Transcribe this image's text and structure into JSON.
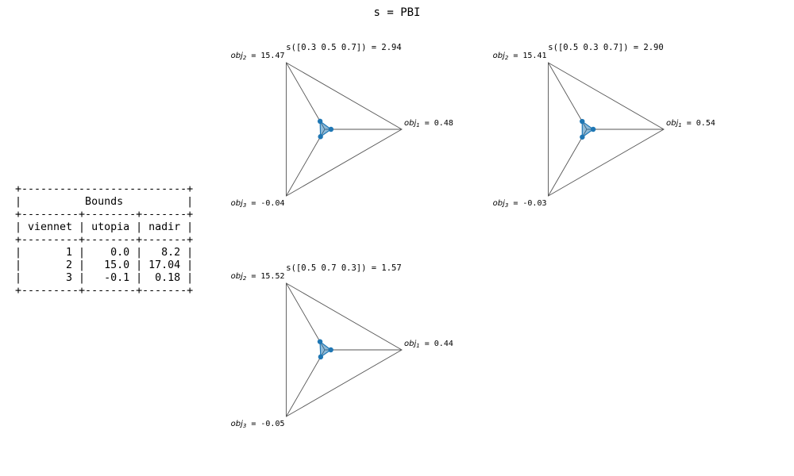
{
  "figure": {
    "title": "s = PBI"
  },
  "bounds_table": {
    "title": "Bounds",
    "headers": [
      "viennet",
      "utopia",
      "nadir"
    ],
    "rows": [
      [
        "1",
        "0.0",
        "8.2"
      ],
      [
        "2",
        "15.0",
        "17.04"
      ],
      [
        "3",
        "-0.1",
        "0.18"
      ]
    ]
  },
  "chart_data": [
    {
      "type": "radar",
      "title": "s([0.3 0.5 0.7]) = 2.94",
      "axes": [
        {
          "name": "obj",
          "index": "1",
          "value_label": " = 0.48"
        },
        {
          "name": "obj",
          "index": "2",
          "value_label": " = 15.47"
        },
        {
          "name": "obj",
          "index": "3",
          "value_label": " = -0.04"
        }
      ],
      "values": [
        0.48,
        15.47,
        -0.04
      ],
      "normalized": [
        0.37,
        0.55,
        0.5
      ],
      "color": "#1f77b4"
    },
    {
      "type": "radar",
      "title": "s([0.5 0.3 0.7]) = 2.90",
      "axes": [
        {
          "name": "obj",
          "index": "1",
          "value_label": " = 0.54"
        },
        {
          "name": "obj",
          "index": "2",
          "value_label": " = 15.41"
        },
        {
          "name": "obj",
          "index": "3",
          "value_label": " = -0.03"
        }
      ],
      "values": [
        0.54,
        15.41,
        -0.03
      ],
      "normalized": [
        0.38,
        0.54,
        0.53
      ],
      "color": "#1f77b4"
    },
    {
      "type": "radar",
      "title": "s([0.5 0.7 0.3]) = 1.57",
      "axes": [
        {
          "name": "obj",
          "index": "1",
          "value_label": " = 0.44"
        },
        {
          "name": "obj",
          "index": "2",
          "value_label": " = 15.52"
        },
        {
          "name": "obj",
          "index": "3",
          "value_label": " = -0.05"
        }
      ],
      "values": [
        0.44,
        15.52,
        -0.05
      ],
      "normalized": [
        0.36,
        0.56,
        0.48
      ],
      "color": "#1f77b4"
    }
  ]
}
